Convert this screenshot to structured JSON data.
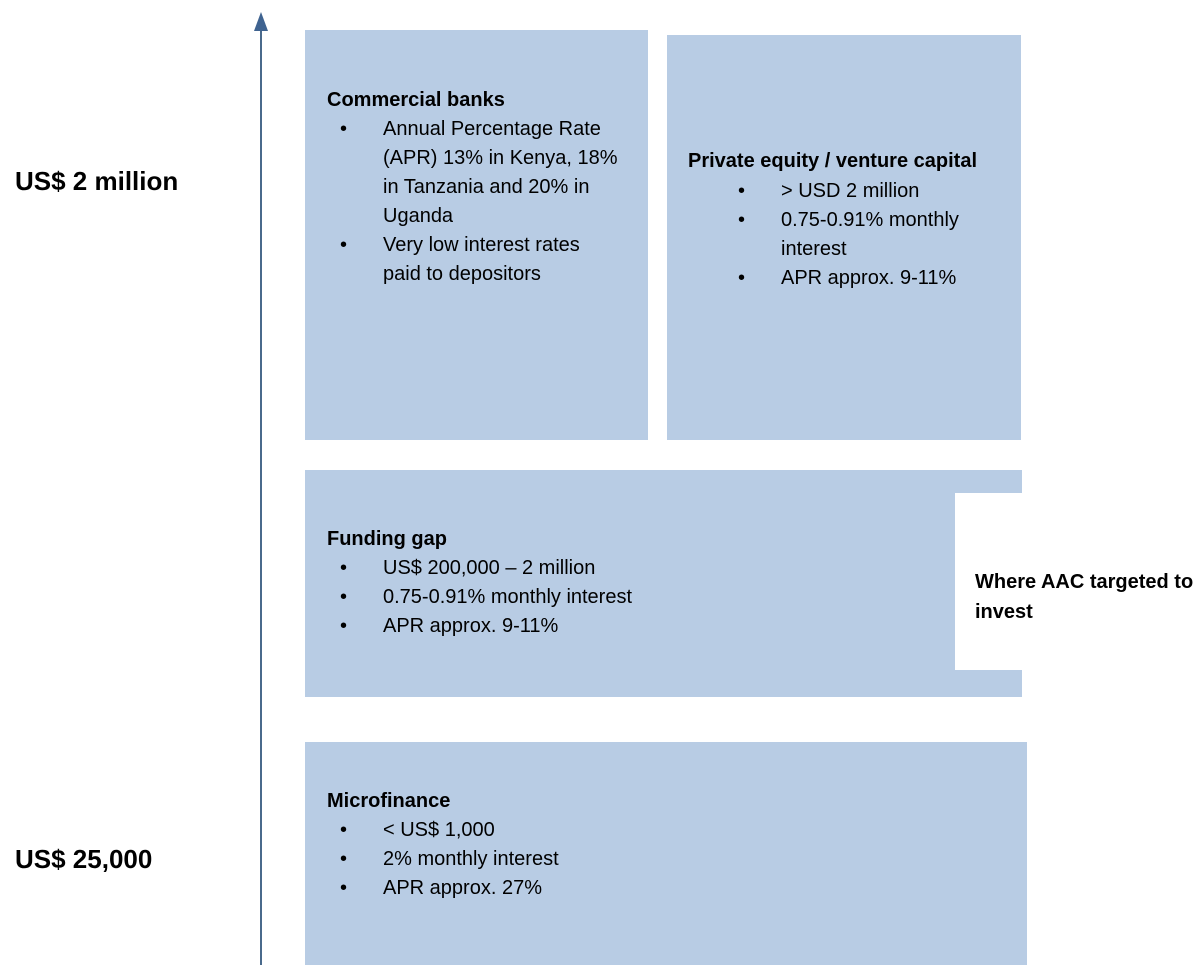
{
  "axis": {
    "top_label": "US$ 2 million",
    "bottom_label": "US$ 25,000"
  },
  "boxes": [
    {
      "title": "Commercial banks",
      "bullets": [
        "Annual Percentage Rate (APR) 13% in Kenya, 18% in Tanzania and 20% in Uganda",
        "Very low interest rates paid to depositors"
      ]
    },
    {
      "title": "Private equity / venture capital",
      "bullets": [
        "> USD 2 million",
        "0.75-0.91% monthly interest",
        "APR approx. 9-11%"
      ]
    },
    {
      "title": "Funding gap",
      "bullets": [
        "US$ 200,000 – 2 million",
        "0.75-0.91% monthly interest",
        "APR approx. 9-11%"
      ]
    },
    {
      "title": "Microfinance",
      "bullets": [
        "< US$ 1,000",
        "2% monthly interest",
        "APR approx. 27%"
      ]
    }
  ],
  "note": "Where AAC targeted to invest"
}
